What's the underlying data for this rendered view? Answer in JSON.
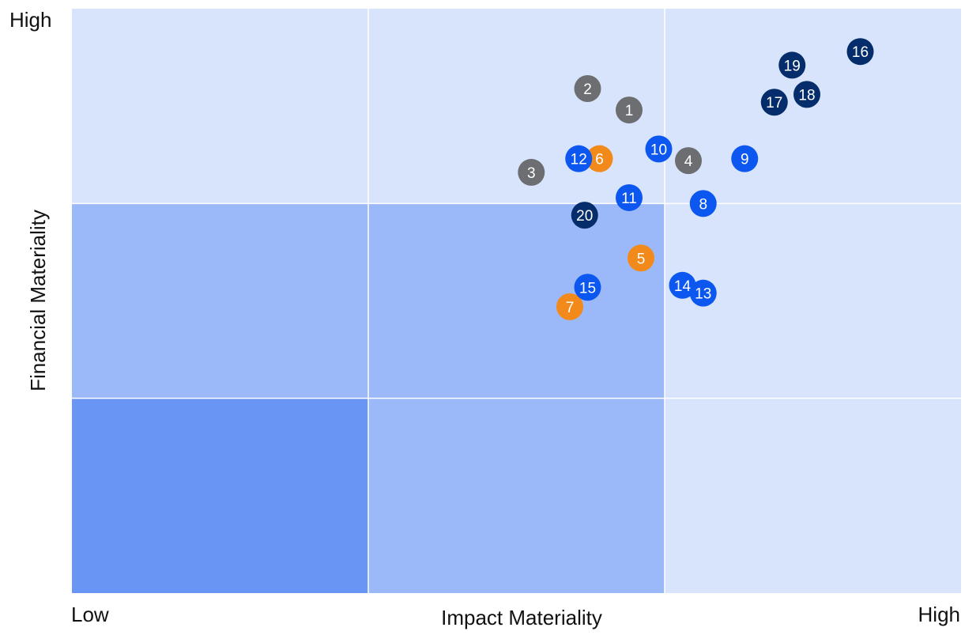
{
  "chart_data": {
    "type": "scatter",
    "title": "",
    "xlabel": "Impact Materiality",
    "ylabel": "Financial Materiality",
    "x_tick_labels": [
      "Low",
      "High"
    ],
    "y_tick_labels": [
      "High"
    ],
    "xlim": [
      0,
      3
    ],
    "ylim": [
      0,
      3
    ],
    "grid": true,
    "zone_colors": {
      "low": "#6996f5",
      "medium": "#9bb8f8",
      "high": "#d8e4fc",
      "grid_line": "#ffffff"
    },
    "category_colors": {
      "gray": "#6d6e71",
      "orange": "#f28a1b",
      "blue": "#0b57f0",
      "navy": "#062d6b"
    },
    "points": [
      {
        "label": "1",
        "x": 1.88,
        "y": 2.48,
        "color": "gray"
      },
      {
        "label": "2",
        "x": 1.74,
        "y": 2.59,
        "color": "gray"
      },
      {
        "label": "3",
        "x": 1.55,
        "y": 2.16,
        "color": "gray"
      },
      {
        "label": "4",
        "x": 2.08,
        "y": 2.22,
        "color": "gray"
      },
      {
        "label": "5",
        "x": 1.92,
        "y": 1.72,
        "color": "orange"
      },
      {
        "label": "6",
        "x": 1.78,
        "y": 2.23,
        "color": "orange"
      },
      {
        "label": "7",
        "x": 1.68,
        "y": 1.47,
        "color": "orange"
      },
      {
        "label": "8",
        "x": 2.13,
        "y": 2.0,
        "color": "blue"
      },
      {
        "label": "9",
        "x": 2.27,
        "y": 2.23,
        "color": "blue"
      },
      {
        "label": "10",
        "x": 1.98,
        "y": 2.28,
        "color": "blue"
      },
      {
        "label": "11",
        "x": 1.88,
        "y": 2.03,
        "color": "blue"
      },
      {
        "label": "12",
        "x": 1.71,
        "y": 2.23,
        "color": "blue"
      },
      {
        "label": "13",
        "x": 2.13,
        "y": 1.54,
        "color": "blue"
      },
      {
        "label": "14",
        "x": 2.06,
        "y": 1.58,
        "color": "blue"
      },
      {
        "label": "15",
        "x": 1.74,
        "y": 1.57,
        "color": "blue"
      },
      {
        "label": "16",
        "x": 2.66,
        "y": 2.78,
        "color": "navy"
      },
      {
        "label": "17",
        "x": 2.37,
        "y": 2.52,
        "color": "navy"
      },
      {
        "label": "18",
        "x": 2.48,
        "y": 2.56,
        "color": "navy"
      },
      {
        "label": "19",
        "x": 2.43,
        "y": 2.71,
        "color": "navy"
      },
      {
        "label": "20",
        "x": 1.73,
        "y": 1.94,
        "color": "navy"
      }
    ]
  }
}
